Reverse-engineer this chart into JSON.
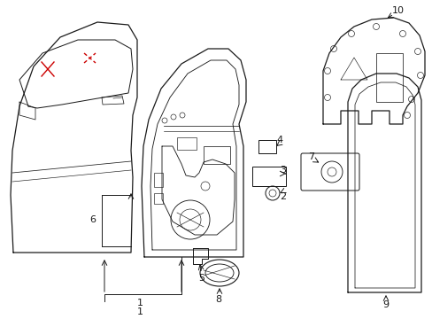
{
  "bg_color": "#ffffff",
  "line_color": "#1a1a1a",
  "red_color": "#cc0000",
  "figsize": [
    4.89,
    3.6
  ],
  "dpi": 100,
  "lw": 0.9
}
